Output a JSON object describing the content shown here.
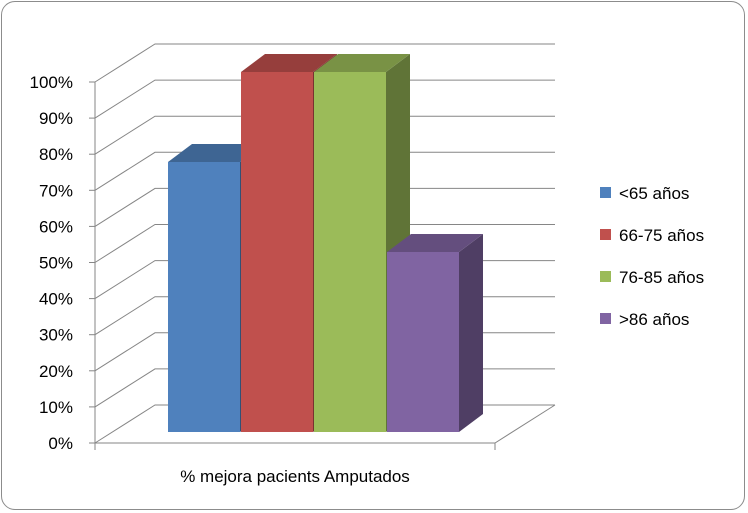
{
  "chart_data": {
    "type": "bar",
    "categories": [
      "% mejora pacients Amputados"
    ],
    "series": [
      {
        "name": "<65 años",
        "values": [
          75
        ],
        "color": "#4F81BD"
      },
      {
        "name": "66-75 años",
        "values": [
          100
        ],
        "color": "#C0504D"
      },
      {
        "name": "76-85 años",
        "values": [
          100
        ],
        "color": "#9BBB59"
      },
      {
        "name": ">86 años",
        "values": [
          50
        ],
        "color": "#8064A2"
      }
    ],
    "yticks": [
      "0%",
      "10%",
      "20%",
      "30%",
      "40%",
      "50%",
      "60%",
      "70%",
      "80%",
      "90%",
      "100%"
    ],
    "ylim": [
      0,
      100
    ],
    "grid": true,
    "style": "3d-clustered-column",
    "legend_position": "right"
  }
}
